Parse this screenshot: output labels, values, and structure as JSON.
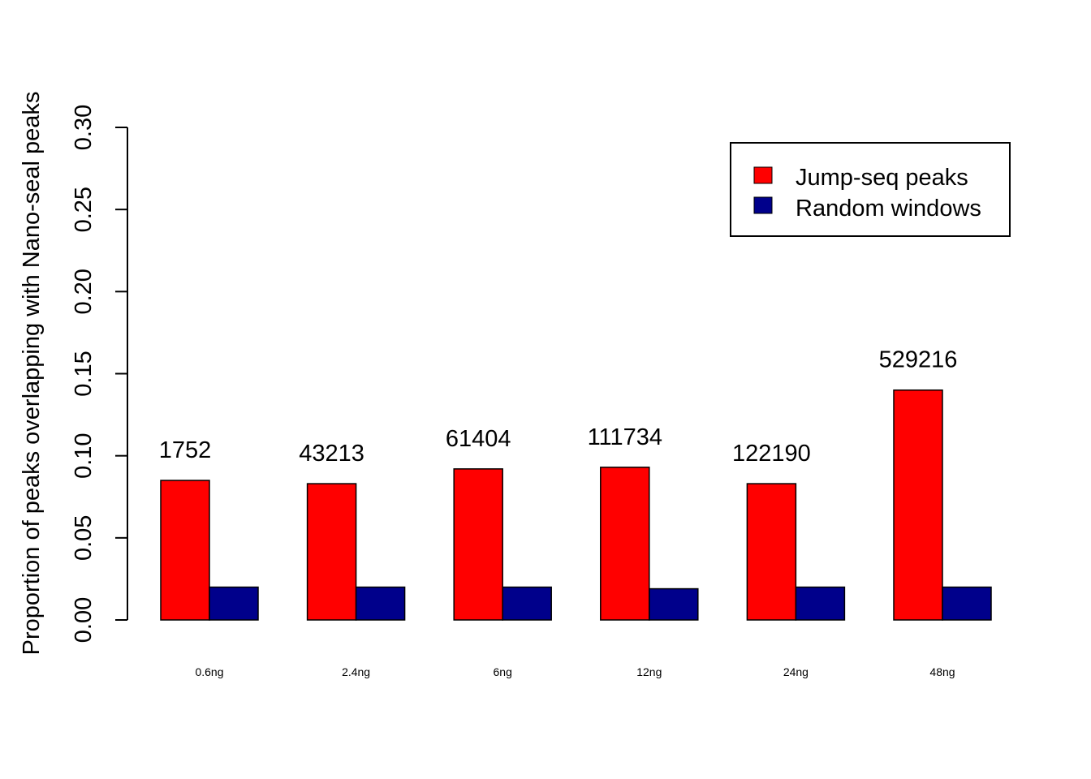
{
  "chart_data": {
    "type": "bar",
    "ylabel": "Proportion of peaks overlapping with Nano-seal peaks",
    "ylim": [
      0,
      0.3
    ],
    "yticks": [
      "0.00",
      "0.05",
      "0.10",
      "0.15",
      "0.20",
      "0.25",
      "0.30"
    ],
    "categories": [
      "0.6ng",
      "2.4ng",
      "6ng",
      "12ng",
      "24ng",
      "48ng"
    ],
    "series": [
      {
        "name": "Jump-seq peaks",
        "color": "#FF0000",
        "values": [
          0.085,
          0.083,
          0.092,
          0.093,
          0.083,
          0.14
        ]
      },
      {
        "name": "Random windows",
        "color": "#00008B",
        "values": [
          0.02,
          0.02,
          0.02,
          0.019,
          0.02,
          0.02
        ]
      }
    ],
    "bar_annotations": [
      "1752",
      "43213",
      "61404",
      "111734",
      "122190",
      "529216"
    ],
    "legend_position": "top-right",
    "grid": false
  }
}
